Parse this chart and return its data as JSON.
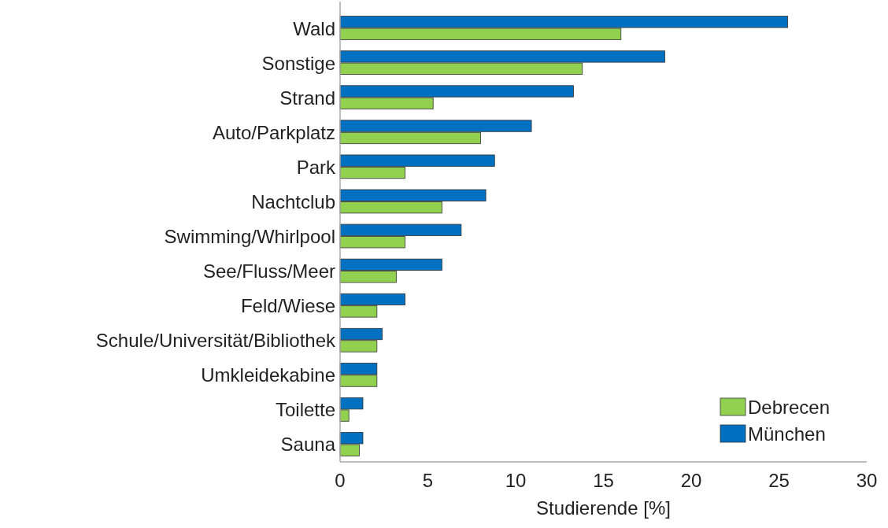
{
  "chart_data": {
    "type": "bar",
    "orientation": "horizontal",
    "xlabel": "Studierende [%]",
    "categories": [
      "Wald",
      "Sonstige",
      "Strand",
      "Auto/Parkplatz",
      "Park",
      "Nachtclub",
      "Swimming/Whirlpool",
      "See/Fluss/Meer",
      "Feld/Wiese",
      "Schule/Universität/Bibliothek",
      "Umkleidekabine",
      "Toilette",
      "Sauna"
    ],
    "series": [
      {
        "name": "Debrecen",
        "color": "#92d050",
        "values": [
          16.0,
          13.8,
          5.3,
          8.0,
          3.7,
          5.8,
          3.7,
          3.2,
          2.1,
          2.1,
          2.1,
          0.5,
          1.1
        ]
      },
      {
        "name": "München",
        "color": "#0070c0",
        "values": [
          25.5,
          18.5,
          13.3,
          10.9,
          8.8,
          8.3,
          6.9,
          5.8,
          3.7,
          2.4,
          2.1,
          1.3,
          1.3
        ]
      }
    ],
    "xlim": [
      0,
      30
    ],
    "xticks": [
      0,
      5,
      10,
      15,
      20,
      25,
      30
    ],
    "grid": false,
    "legend": "bottom right"
  }
}
